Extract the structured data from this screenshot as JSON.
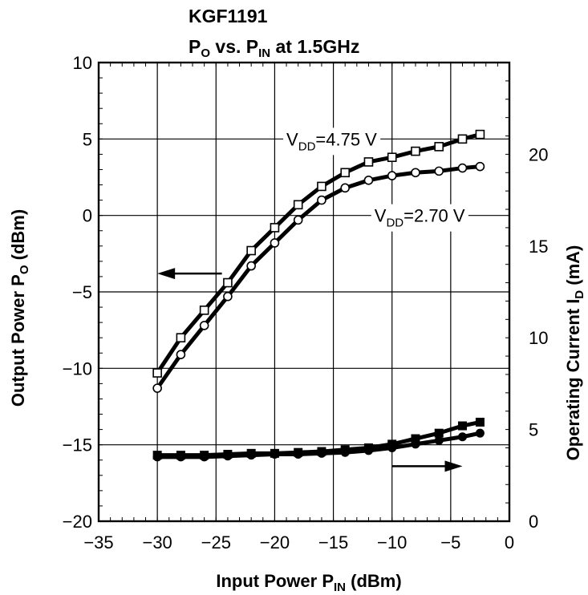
{
  "chart_data": {
    "type": "line",
    "title": "KGF1191",
    "subtitle": {
      "main": "P",
      "sub1": "O",
      "mid": " vs. P",
      "sub2": "IN",
      "tail": "  at 1.5GHz"
    },
    "xlabel": {
      "main": "Input Power  P",
      "sub": "IN",
      "tail": "  (dBm)"
    },
    "ylabel": {
      "main": "Output Power  P",
      "sub": "O",
      "tail": "  (dBm)"
    },
    "y2label": {
      "main": "Operating Current  I",
      "sub": "D",
      "tail": "  (mA)"
    },
    "xlim": [
      -35,
      0
    ],
    "ylim": [
      -20,
      10
    ],
    "y2lim": [
      0,
      25
    ],
    "xticks": [
      -35,
      -30,
      -25,
      -20,
      -15,
      -10,
      -5,
      0
    ],
    "xtick_labels": [
      "−35",
      "−30",
      "−25",
      "−20",
      "−15",
      "−10",
      "−5",
      "0"
    ],
    "yticks": [
      -20,
      -15,
      -10,
      -5,
      0,
      5,
      10
    ],
    "ytick_labels": [
      "−20",
      "−15",
      "−10",
      "−5",
      "0",
      "5",
      "10"
    ],
    "y2ticks": [
      0,
      5,
      10,
      15,
      20
    ],
    "y2tick_labels": [
      "0",
      "5",
      "10",
      "15",
      "20"
    ],
    "grid": true,
    "series": [
      {
        "axis": "left",
        "marker": "open-square",
        "x": [
          -30,
          -28,
          -26,
          -24,
          -22,
          -20,
          -18,
          -16,
          -14,
          -12,
          -10,
          -8,
          -6,
          -4,
          -2.5
        ],
        "y": [
          -10.3,
          -8.0,
          -6.2,
          -4.4,
          -2.3,
          -0.8,
          0.7,
          1.9,
          2.8,
          3.5,
          3.8,
          4.2,
          4.5,
          5.0,
          5.3
        ]
      },
      {
        "axis": "left",
        "marker": "open-circle",
        "x": [
          -30,
          -28,
          -26,
          -24,
          -22,
          -20,
          -18,
          -16,
          -14,
          -12,
          -10,
          -8,
          -6,
          -4,
          -2.5
        ],
        "y": [
          -11.3,
          -9.1,
          -7.2,
          -5.3,
          -3.3,
          -1.8,
          -0.3,
          1.0,
          1.8,
          2.3,
          2.6,
          2.8,
          2.9,
          3.1,
          3.2
        ]
      },
      {
        "axis": "right",
        "marker": "filled-square",
        "x": [
          -30,
          -28,
          -26,
          -24,
          -22,
          -20,
          -18,
          -16,
          -14,
          -12,
          -10,
          -8,
          -6,
          -4,
          -2.5
        ],
        "y": [
          3.6,
          3.6,
          3.6,
          3.65,
          3.7,
          3.7,
          3.75,
          3.8,
          3.9,
          4.0,
          4.2,
          4.5,
          4.8,
          5.2,
          5.4
        ]
      },
      {
        "axis": "right",
        "marker": "filled-circle",
        "x": [
          -30,
          -28,
          -26,
          -24,
          -22,
          -20,
          -18,
          -16,
          -14,
          -12,
          -10,
          -8,
          -6,
          -4,
          -2.5
        ],
        "y": [
          3.5,
          3.5,
          3.5,
          3.55,
          3.6,
          3.65,
          3.65,
          3.7,
          3.75,
          3.85,
          4.0,
          4.2,
          4.4,
          4.6,
          4.8
        ]
      }
    ],
    "annotations": [
      {
        "main": "V",
        "sub": "DD",
        "tail": "=4.75 V",
        "x": -19,
        "y": 5
      },
      {
        "main": "V",
        "sub": "DD",
        "tail": "=2.70 V",
        "x": -11.5,
        "y": 0
      }
    ],
    "arrows": [
      {
        "points_to": "left",
        "from_x": -24.5,
        "to_x": -30,
        "y": -3.8
      },
      {
        "points_to": "right",
        "from_x": -10,
        "to_x": -4,
        "y": 3.0,
        "axis": "right"
      }
    ]
  }
}
